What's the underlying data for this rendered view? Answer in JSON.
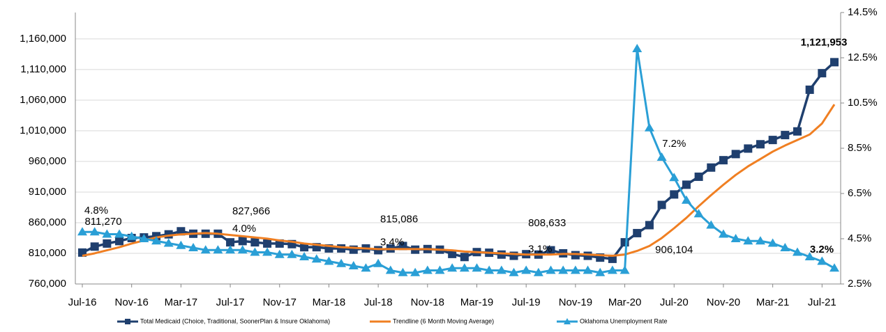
{
  "chart_data": {
    "type": "line",
    "categories": [
      "Jul-16",
      null,
      null,
      null,
      "Nov-16",
      null,
      null,
      null,
      "Mar-17",
      null,
      null,
      null,
      "Jul-17",
      null,
      null,
      null,
      "Nov-17",
      null,
      null,
      null,
      "Mar-18",
      null,
      null,
      null,
      "Jul-18",
      null,
      null,
      null,
      "Nov-18",
      null,
      null,
      null,
      "Mar-19",
      null,
      null,
      null,
      "Jul-19",
      null,
      null,
      null,
      "Nov-19",
      null,
      null,
      null,
      "Mar-20",
      null,
      null,
      null,
      "Jul-20",
      null,
      null,
      null,
      "Nov-20",
      null,
      null,
      null,
      "Mar-21",
      null,
      null,
      null,
      "Jul-21",
      null
    ],
    "series": [
      {
        "name": "Total Medicaid (Choice, Traditional, SoonerPlan & Insure Oklahoma)",
        "color": "#1f3f6e",
        "marker": "square",
        "values": [
          811270,
          821000,
          826000,
          830000,
          835000,
          836000,
          838000,
          841000,
          846000,
          842000,
          842000,
          842000,
          827966,
          830000,
          828000,
          826000,
          826000,
          825000,
          820000,
          820000,
          818000,
          818000,
          816000,
          818000,
          815086,
          818000,
          822000,
          816000,
          817000,
          816000,
          809000,
          804000,
          812000,
          811000,
          808000,
          806000,
          808633,
          808000,
          815000,
          810000,
          807000,
          806000,
          803000,
          801000,
          828000,
          843000,
          856000,
          889000,
          906104,
          922000,
          935000,
          950000,
          962000,
          972000,
          981000,
          988000,
          995000,
          1003000,
          1009000,
          1077000,
          1104000,
          1121953
        ],
        "value_labels": [
          "811,270",
          null,
          null,
          null,
          null,
          null,
          null,
          null,
          null,
          null,
          null,
          null,
          "827,966",
          null,
          null,
          null,
          null,
          null,
          null,
          null,
          null,
          null,
          null,
          null,
          "815,086",
          null,
          null,
          null,
          null,
          null,
          null,
          null,
          null,
          null,
          null,
          null,
          "808,633",
          null,
          null,
          null,
          null,
          null,
          null,
          null,
          null,
          null,
          null,
          null,
          "906,104",
          null,
          null,
          null,
          null,
          null,
          null,
          null,
          null,
          null,
          null,
          null,
          null,
          "1,121,953"
        ]
      },
      {
        "name": "Trendline (6 Month Moving Average)",
        "color": "#f07f22",
        "marker": "none",
        "values": [
          806000,
          810000,
          815000,
          820000,
          826000,
          831000,
          836000,
          839000,
          841000,
          842000,
          843000,
          842000,
          840000,
          838000,
          836000,
          834000,
          831000,
          829000,
          826000,
          824000,
          822000,
          820000,
          819000,
          818000,
          817000,
          817000,
          817000,
          817000,
          817000,
          816000,
          815000,
          813000,
          812000,
          811000,
          810000,
          809000,
          808000,
          808000,
          808000,
          809000,
          809000,
          808000,
          807000,
          806000,
          808000,
          814000,
          822000,
          835000,
          851000,
          868000,
          887000,
          905000,
          922000,
          938000,
          952000,
          964000,
          976000,
          986000,
          995000,
          1004000,
          1022000,
          1053000
        ]
      },
      {
        "name": "Oklahoma Unemployment Rate",
        "color": "#2a9fd6",
        "marker": "triangle",
        "axis": "y2",
        "values": [
          4.8,
          4.8,
          4.7,
          4.7,
          4.6,
          4.5,
          4.4,
          4.3,
          4.2,
          4.1,
          4.0,
          4.0,
          4.0,
          4.0,
          3.9,
          3.9,
          3.8,
          3.8,
          3.7,
          3.6,
          3.5,
          3.4,
          3.3,
          3.2,
          3.4,
          3.1,
          3.0,
          3.0,
          3.1,
          3.1,
          3.2,
          3.2,
          3.2,
          3.1,
          3.1,
          3.0,
          3.1,
          3.0,
          3.1,
          3.1,
          3.1,
          3.1,
          3.0,
          3.1,
          3.1,
          12.9,
          9.4,
          8.1,
          7.2,
          6.2,
          5.6,
          5.1,
          4.7,
          4.5,
          4.4,
          4.4,
          4.3,
          4.1,
          3.9,
          3.7,
          3.5,
          3.2
        ],
        "value_labels": [
          "4.8%",
          null,
          null,
          null,
          null,
          null,
          null,
          null,
          null,
          null,
          null,
          null,
          "4.0%",
          null,
          null,
          null,
          null,
          null,
          null,
          null,
          null,
          null,
          null,
          null,
          "3.4%",
          null,
          null,
          null,
          null,
          null,
          null,
          null,
          null,
          null,
          null,
          null,
          "3.1%",
          null,
          null,
          null,
          null,
          null,
          null,
          null,
          null,
          null,
          null,
          null,
          "7.2%",
          null,
          null,
          null,
          null,
          null,
          null,
          null,
          null,
          null,
          null,
          null,
          null,
          "3.2%"
        ]
      }
    ],
    "ylim": [
      760000,
      1203000
    ],
    "yticks": [
      {
        "value": 760000,
        "label": "760,000"
      },
      {
        "value": 810000,
        "label": "810,000"
      },
      {
        "value": 860000,
        "label": "860,000"
      },
      {
        "value": 910000,
        "label": "910,000"
      },
      {
        "value": 960000,
        "label": "960,000"
      },
      {
        "value": 1010000,
        "label": "1,010,000"
      },
      {
        "value": 1060000,
        "label": "1,060,000"
      },
      {
        "value": 1110000,
        "label": "1,110,000"
      },
      {
        "value": 1160000,
        "label": "1,160,000"
      }
    ],
    "y2lim": [
      2.5,
      14.5
    ],
    "y2ticks": [
      {
        "value": 2.5,
        "label": "2.5%"
      },
      {
        "value": 4.5,
        "label": "4.5%"
      },
      {
        "value": 6.5,
        "label": "6.5%"
      },
      {
        "value": 8.5,
        "label": "8.5%"
      },
      {
        "value": 10.5,
        "label": "10.5%"
      },
      {
        "value": 12.5,
        "label": "12.5%"
      },
      {
        "value": 14.5,
        "label": "14.5%"
      }
    ],
    "grid": true,
    "legend": "bottom"
  }
}
